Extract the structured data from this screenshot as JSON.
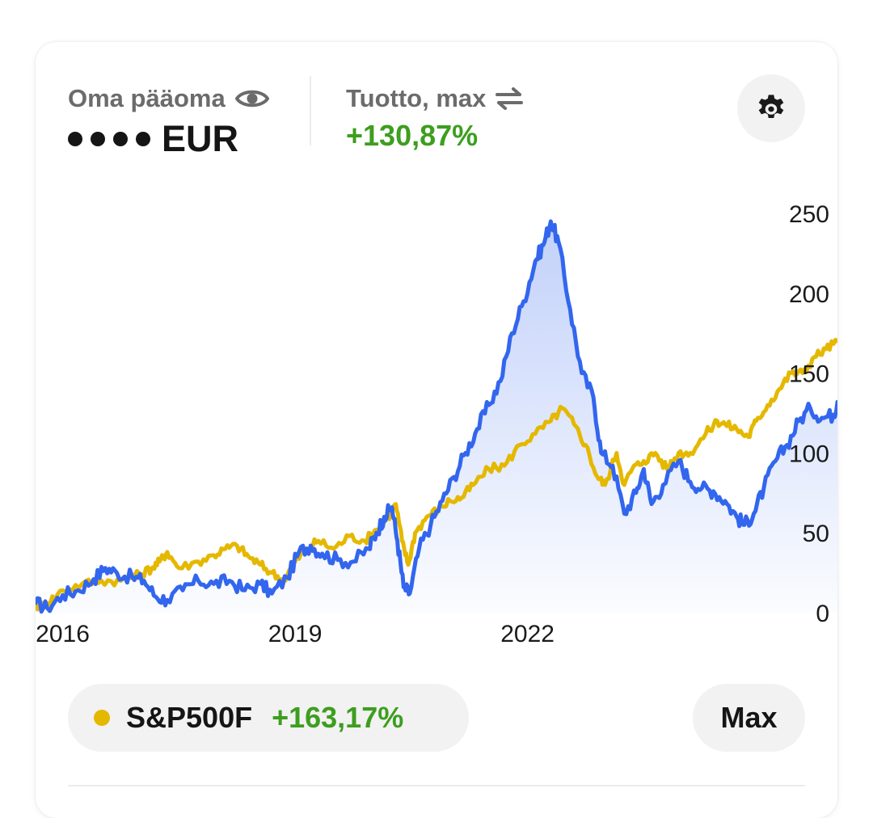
{
  "header": {
    "equity_label": "Oma pääoma",
    "equity_currency": "EUR",
    "equity_visibility_icon": "eye-icon",
    "return_label": "Tuotto, max",
    "return_toggle_icon": "swap-arrows-icon",
    "return_value": "+130,87%",
    "settings_icon": "gear-icon"
  },
  "colors": {
    "portfolio": "#3366ee",
    "benchmark": "#e5b800",
    "positive": "#3d9e1f"
  },
  "legend": {
    "benchmark_name": "S&P500F",
    "benchmark_return": "+163,17%"
  },
  "range_button": {
    "label": "Max"
  },
  "chart_data": {
    "type": "line",
    "x_ticks": [
      "2016",
      "2019",
      "2022"
    ],
    "y_ticks": [
      "250",
      "200",
      "150",
      "100",
      "50",
      "0"
    ],
    "ylim": [
      0,
      250
    ],
    "grid": false,
    "series": [
      {
        "name": "Oma pääoma",
        "color": "#3366ee",
        "area": true,
        "points": [
          [
            2015.65,
            6
          ],
          [
            2015.8,
            3
          ],
          [
            2016.0,
            11
          ],
          [
            2016.2,
            14
          ],
          [
            2016.4,
            21
          ],
          [
            2016.55,
            28
          ],
          [
            2016.7,
            25
          ],
          [
            2016.9,
            22
          ],
          [
            2017.05,
            20
          ],
          [
            2017.2,
            10
          ],
          [
            2017.35,
            8
          ],
          [
            2017.55,
            14
          ],
          [
            2017.75,
            20
          ],
          [
            2017.95,
            18
          ],
          [
            2018.15,
            20
          ],
          [
            2018.35,
            14
          ],
          [
            2018.55,
            18
          ],
          [
            2018.7,
            12
          ],
          [
            2018.9,
            22
          ],
          [
            2019.05,
            38
          ],
          [
            2019.2,
            42
          ],
          [
            2019.35,
            37
          ],
          [
            2019.55,
            33
          ],
          [
            2019.75,
            32
          ],
          [
            2019.95,
            40
          ],
          [
            2020.05,
            50
          ],
          [
            2020.15,
            60
          ],
          [
            2020.25,
            66
          ],
          [
            2020.32,
            45
          ],
          [
            2020.4,
            16
          ],
          [
            2020.48,
            12
          ],
          [
            2020.6,
            40
          ],
          [
            2020.75,
            55
          ],
          [
            2020.9,
            70
          ],
          [
            2021.05,
            85
          ],
          [
            2021.2,
            100
          ],
          [
            2021.35,
            115
          ],
          [
            2021.5,
            130
          ],
          [
            2021.65,
            145
          ],
          [
            2021.8,
            175
          ],
          [
            2021.95,
            195
          ],
          [
            2022.1,
            220
          ],
          [
            2022.2,
            230
          ],
          [
            2022.3,
            245
          ],
          [
            2022.4,
            232
          ],
          [
            2022.55,
            190
          ],
          [
            2022.7,
            150
          ],
          [
            2022.85,
            135
          ],
          [
            2022.95,
            100
          ],
          [
            2023.1,
            92
          ],
          [
            2023.25,
            62
          ],
          [
            2023.4,
            75
          ],
          [
            2023.5,
            90
          ],
          [
            2023.6,
            68
          ],
          [
            2023.75,
            80
          ],
          [
            2023.95,
            95
          ],
          [
            2024.1,
            82
          ],
          [
            2024.25,
            78
          ],
          [
            2024.4,
            76
          ],
          [
            2024.55,
            70
          ],
          [
            2024.7,
            60
          ],
          [
            2024.8,
            55
          ],
          [
            2024.92,
            62
          ],
          [
            2025.05,
            78
          ],
          [
            2025.2,
            95
          ],
          [
            2025.35,
            105
          ],
          [
            2025.5,
            120
          ],
          [
            2025.65,
            128
          ],
          [
            2025.8,
            122
          ],
          [
            2025.95,
            124
          ],
          [
            2026.0,
            132
          ]
        ]
      },
      {
        "name": "S&P500F",
        "color": "#e5b800",
        "area": false,
        "points": [
          [
            2015.65,
            4
          ],
          [
            2015.8,
            6
          ],
          [
            2016.0,
            14
          ],
          [
            2016.25,
            18
          ],
          [
            2016.5,
            20
          ],
          [
            2016.75,
            20
          ],
          [
            2017.0,
            24
          ],
          [
            2017.15,
            28
          ],
          [
            2017.25,
            32
          ],
          [
            2017.35,
            38
          ],
          [
            2017.5,
            28
          ],
          [
            2017.75,
            32
          ],
          [
            2017.95,
            36
          ],
          [
            2018.1,
            40
          ],
          [
            2018.25,
            42
          ],
          [
            2018.4,
            35
          ],
          [
            2018.55,
            30
          ],
          [
            2018.7,
            25
          ],
          [
            2018.85,
            20
          ],
          [
            2019.0,
            32
          ],
          [
            2019.15,
            40
          ],
          [
            2019.3,
            45
          ],
          [
            2019.5,
            40
          ],
          [
            2019.7,
            48
          ],
          [
            2019.9,
            45
          ],
          [
            2020.05,
            52
          ],
          [
            2020.2,
            60
          ],
          [
            2020.3,
            68
          ],
          [
            2020.38,
            45
          ],
          [
            2020.46,
            30
          ],
          [
            2020.55,
            50
          ],
          [
            2020.7,
            60
          ],
          [
            2020.85,
            65
          ],
          [
            2021.0,
            70
          ],
          [
            2021.15,
            72
          ],
          [
            2021.3,
            80
          ],
          [
            2021.5,
            90
          ],
          [
            2021.7,
            92
          ],
          [
            2021.9,
            105
          ],
          [
            2022.1,
            112
          ],
          [
            2022.3,
            120
          ],
          [
            2022.45,
            128
          ],
          [
            2022.6,
            118
          ],
          [
            2022.75,
            105
          ],
          [
            2022.9,
            85
          ],
          [
            2023.0,
            80
          ],
          [
            2023.15,
            100
          ],
          [
            2023.25,
            80
          ],
          [
            2023.35,
            90
          ],
          [
            2023.5,
            95
          ],
          [
            2023.65,
            100
          ],
          [
            2023.8,
            90
          ],
          [
            2023.95,
            100
          ],
          [
            2024.1,
            100
          ],
          [
            2024.3,
            112
          ],
          [
            2024.45,
            120
          ],
          [
            2024.55,
            118
          ],
          [
            2024.7,
            115
          ],
          [
            2024.85,
            110
          ],
          [
            2024.95,
            120
          ],
          [
            2025.1,
            130
          ],
          [
            2025.25,
            140
          ],
          [
            2025.4,
            150
          ],
          [
            2025.55,
            150
          ],
          [
            2025.7,
            160
          ],
          [
            2025.85,
            165
          ],
          [
            2026.0,
            170
          ]
        ]
      }
    ]
  }
}
